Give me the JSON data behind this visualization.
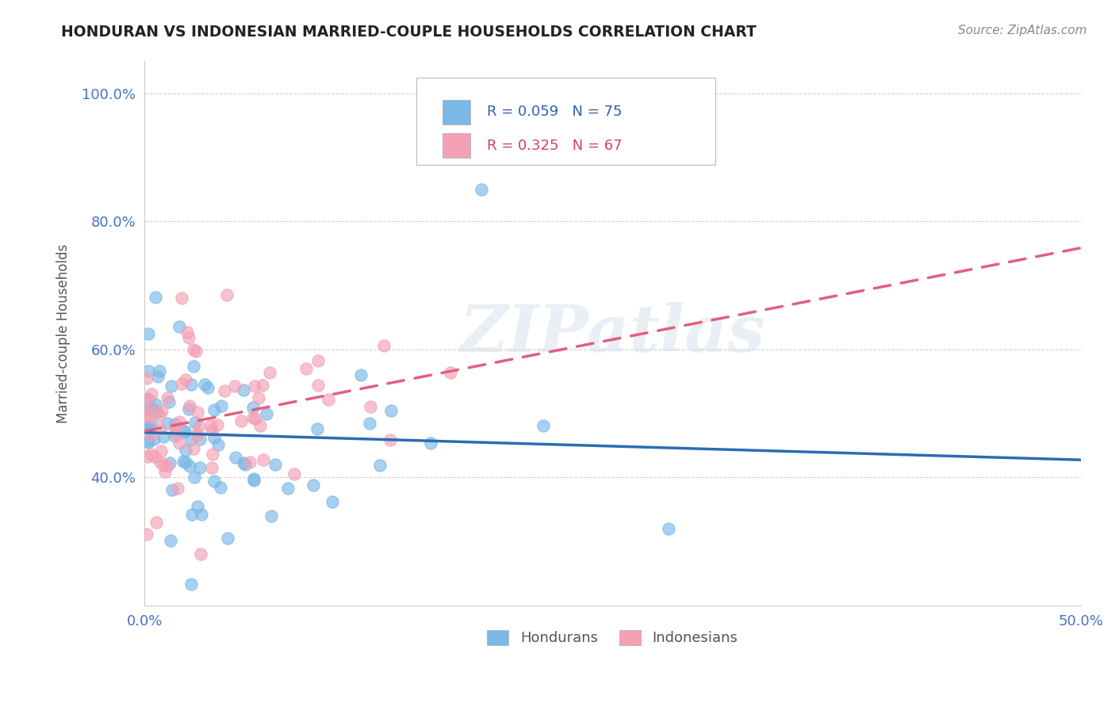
{
  "title": "HONDURAN VS INDONESIAN MARRIED-COUPLE HOUSEHOLDS CORRELATION CHART",
  "source": "Source: ZipAtlas.com",
  "ylabel": "Married-couple Households",
  "xlim": [
    0.0,
    50.0
  ],
  "ylim": [
    20.0,
    105.0
  ],
  "yticks": [
    40.0,
    60.0,
    80.0,
    100.0
  ],
  "ytick_labels": [
    "40.0%",
    "60.0%",
    "80.0%",
    "100.0%"
  ],
  "xtick_labels": [
    "0.0%",
    "50.0%"
  ],
  "honduran_color": "#7ab8e8",
  "indonesian_color": "#f4a0b5",
  "honduran_line_color": "#2b6cb0",
  "indonesian_line_color": "#e06080",
  "R_honduran": 0.059,
  "N_honduran": 75,
  "R_indonesian": 0.325,
  "N_indonesian": 67,
  "legend_label_honduran": "Hondurans",
  "legend_label_indonesian": "Indonesians",
  "background_color": "#ffffff",
  "grid_color": "#d0d0d0",
  "watermark": "ZIPatlas",
  "title_color": "#222222",
  "source_color": "#888888",
  "tick_color": "#4472C4",
  "ylabel_color": "#555555"
}
